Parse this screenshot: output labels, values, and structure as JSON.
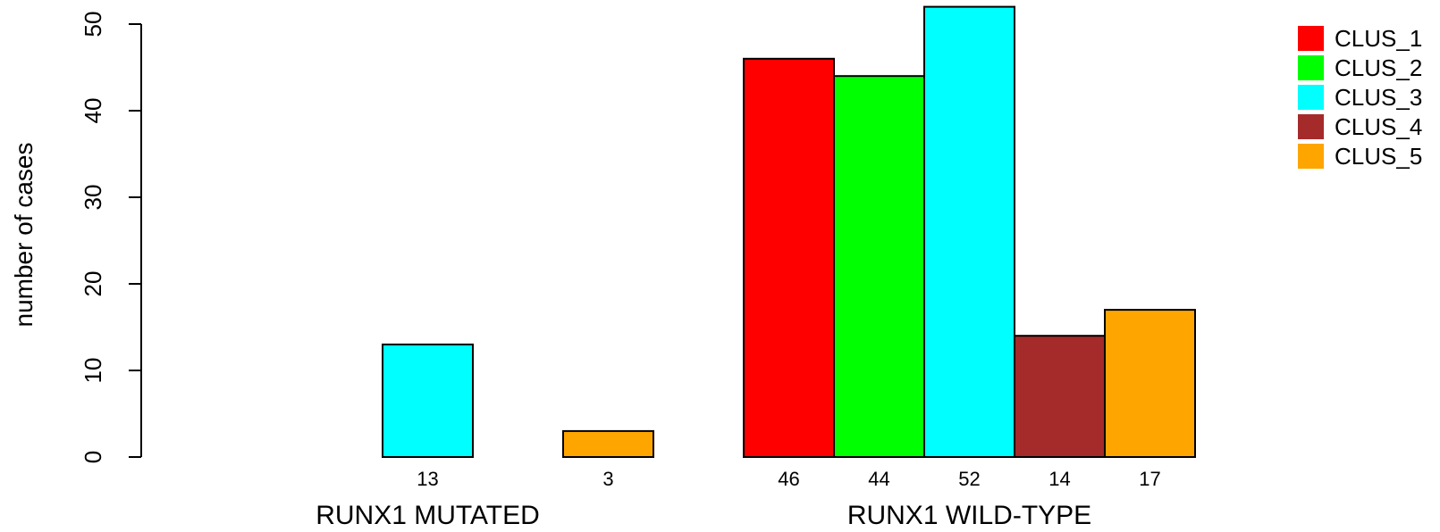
{
  "chart_data": {
    "type": "bar",
    "xlabel": "",
    "ylabel": "number of cases",
    "ylim": [
      0,
      50
    ],
    "yticks": [
      0,
      10,
      20,
      30,
      40,
      50
    ],
    "grid": false,
    "legend_placement": "top-right",
    "series": [
      {
        "name": "CLUS_1",
        "color": "#FF0000"
      },
      {
        "name": "CLUS_2",
        "color": "#00FF00"
      },
      {
        "name": "CLUS_3",
        "color": "#00FFFF"
      },
      {
        "name": "CLUS_4",
        "color": "#A52A2A"
      },
      {
        "name": "CLUS_5",
        "color": "#FFA500"
      }
    ],
    "categories": [
      "RUNX1 MUTATED",
      "RUNX1 WILD-TYPE"
    ],
    "values": [
      [
        0,
        0,
        13,
        0,
        3
      ],
      [
        46,
        44,
        52,
        14,
        17
      ]
    ],
    "count_labels": [
      [
        "",
        "",
        "13",
        "",
        "3"
      ],
      [
        "46",
        "44",
        "52",
        "14",
        "17"
      ]
    ]
  }
}
